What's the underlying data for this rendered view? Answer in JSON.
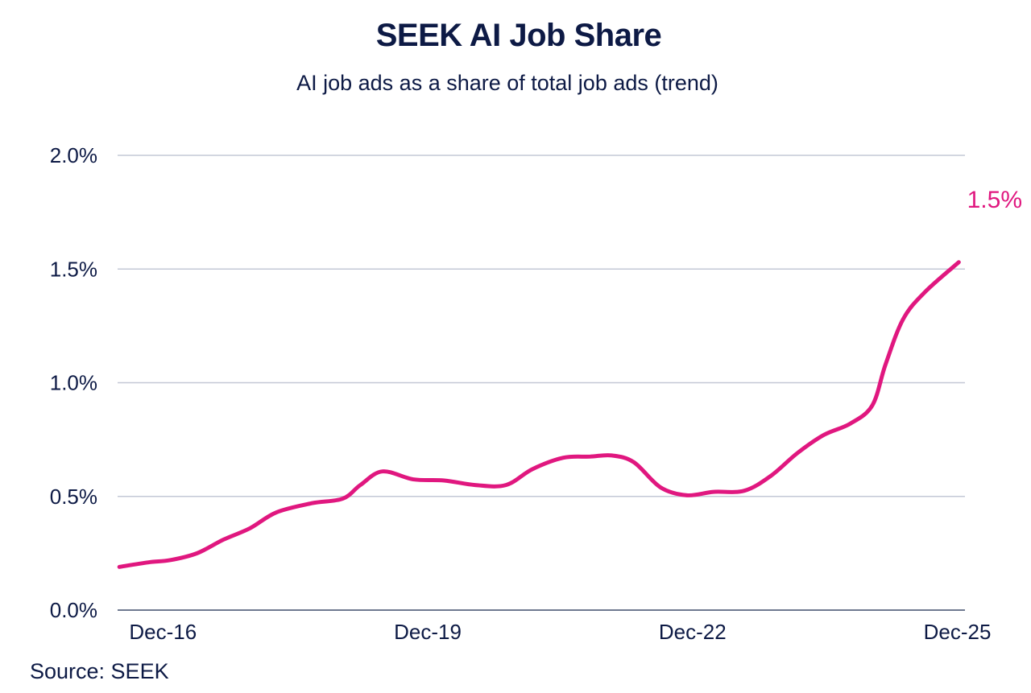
{
  "chart_data": {
    "type": "line",
    "title": "SEEK AI Job Share",
    "subtitle": "AI job ads as a share of total job ads (trend)",
    "xlabel": "",
    "ylabel": "",
    "source": "Source: SEEK",
    "ylim": [
      0,
      2.0
    ],
    "xlim": [
      2016.4,
      2026.0
    ],
    "grid": true,
    "y_ticks": [
      {
        "value": 0.0,
        "label": "0.0%"
      },
      {
        "value": 0.5,
        "label": "0.5%"
      },
      {
        "value": 1.0,
        "label": "1.0%"
      },
      {
        "value": 1.5,
        "label": "1.5%"
      },
      {
        "value": 2.0,
        "label": "2.0%"
      }
    ],
    "x_ticks": [
      {
        "value": 2016.95,
        "label": "Dec-16"
      },
      {
        "value": 2019.95,
        "label": "Dec-19"
      },
      {
        "value": 2022.95,
        "label": "Dec-22"
      },
      {
        "value": 2025.95,
        "label": "Dec-25"
      }
    ],
    "series": [
      {
        "name": "AI job share",
        "color": "#e0177f",
        "end_label": "1.5%",
        "x": [
          2016.42,
          2016.75,
          2017.0,
          2017.3,
          2017.6,
          2017.9,
          2018.2,
          2018.6,
          2018.95,
          2019.15,
          2019.4,
          2019.75,
          2020.1,
          2020.45,
          2020.8,
          2021.1,
          2021.45,
          2021.75,
          2022.0,
          2022.25,
          2022.55,
          2022.85,
          2023.15,
          2023.5,
          2023.8,
          2024.1,
          2024.4,
          2024.7,
          2024.95,
          2025.1,
          2025.3,
          2025.55,
          2025.93
        ],
        "values": [
          0.19,
          0.21,
          0.22,
          0.25,
          0.31,
          0.36,
          0.43,
          0.47,
          0.49,
          0.55,
          0.61,
          0.575,
          0.57,
          0.55,
          0.55,
          0.62,
          0.67,
          0.675,
          0.68,
          0.65,
          0.54,
          0.505,
          0.52,
          0.525,
          0.59,
          0.69,
          0.77,
          0.82,
          0.9,
          1.08,
          1.28,
          1.4,
          1.53
        ]
      }
    ]
  }
}
